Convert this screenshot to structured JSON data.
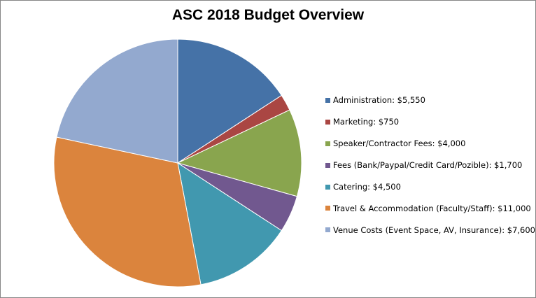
{
  "chart_data": {
    "type": "pie",
    "title": "ASC 2018 Budget Overview",
    "legend_position": "right",
    "slices": [
      {
        "label": "Administration: $5,550",
        "value": 5550,
        "color": "#4572A7"
      },
      {
        "label": "Marketing:  $750",
        "value": 750,
        "color": "#AA4643"
      },
      {
        "label": "Speaker/Contractor Fees: $4,000",
        "value": 4000,
        "color": "#89A54E"
      },
      {
        "label": "Fees (Bank/Paypal/Credit Card/Pozible): $1,700",
        "value": 1700,
        "color": "#71588F"
      },
      {
        "label": "Catering: $4,500",
        "value": 4500,
        "color": "#4198AF"
      },
      {
        "label": "Travel & Accommodation (Faculty/Staff): $11,000",
        "value": 11000,
        "color": "#DB843D"
      },
      {
        "label": "Venue Costs (Event Space, AV, Insurance): $7,600",
        "value": 7600,
        "color": "#93A9CF"
      }
    ]
  }
}
